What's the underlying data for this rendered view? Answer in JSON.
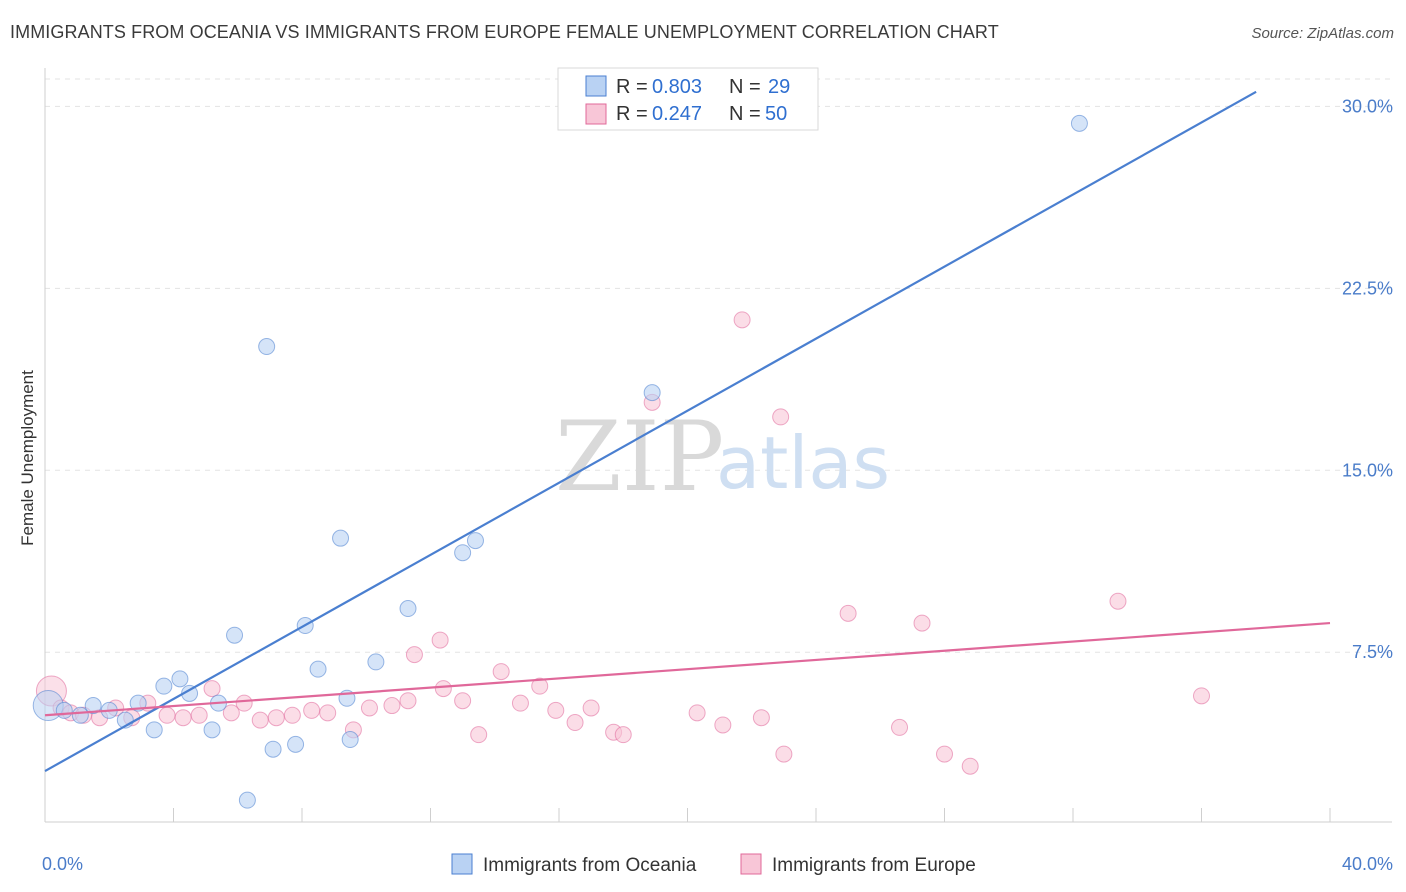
{
  "header": {
    "title": "IMMIGRANTS FROM OCEANIA VS IMMIGRANTS FROM EUROPE FEMALE UNEMPLOYMENT CORRELATION CHART",
    "source": "Source: ZipAtlas.com"
  },
  "watermark": {
    "zip": "ZIP",
    "atlas": "atlas"
  },
  "legend": {
    "r_label": "R =",
    "n_label": "N =",
    "rows": [
      {
        "r": "0.803",
        "n": "29"
      },
      {
        "r": "0.247",
        "n": "50"
      }
    ]
  },
  "chart_data": {
    "type": "scatter",
    "title": "IMMIGRANTS FROM OCEANIA VS IMMIGRANTS FROM EUROPE FEMALE UNEMPLOYMENT CORRELATION CHART",
    "xlabel": "",
    "ylabel": "Female Unemployment",
    "xlim": [
      0,
      40
    ],
    "ylim": [
      0.5,
      31.5
    ],
    "x_tick_labels": [
      "0.0%",
      "40.0%"
    ],
    "y_ticks": [
      7.5,
      15.0,
      22.5,
      30.0
    ],
    "y_tick_labels": [
      "7.5%",
      "15.0%",
      "22.5%",
      "30.0%"
    ],
    "grid": true,
    "legend_position": "top-center",
    "colors": {
      "oceania": "#4a7fd0",
      "europe": "#e0689a",
      "oceania_fill": "#b9d2f3",
      "europe_fill": "#f8c6d7"
    },
    "series": [
      {
        "name": "Immigrants from Oceania",
        "r": 0.803,
        "n": 29,
        "trend": {
          "x": [
            0,
            37.7
          ],
          "y": [
            2.6,
            30.6
          ]
        },
        "points": [
          {
            "x": 0.1,
            "y": 5.3,
            "big": true
          },
          {
            "x": 0.6,
            "y": 5.1
          },
          {
            "x": 1.1,
            "y": 4.9
          },
          {
            "x": 1.5,
            "y": 5.3
          },
          {
            "x": 2.0,
            "y": 5.1
          },
          {
            "x": 2.5,
            "y": 4.7
          },
          {
            "x": 2.9,
            "y": 5.4
          },
          {
            "x": 3.4,
            "y": 4.3
          },
          {
            "x": 3.7,
            "y": 6.1
          },
          {
            "x": 4.2,
            "y": 6.4
          },
          {
            "x": 4.5,
            "y": 5.8
          },
          {
            "x": 5.2,
            "y": 4.3
          },
          {
            "x": 5.4,
            "y": 5.4
          },
          {
            "x": 5.9,
            "y": 8.2
          },
          {
            "x": 6.3,
            "y": 1.4
          },
          {
            "x": 6.9,
            "y": 20.1
          },
          {
            "x": 7.1,
            "y": 3.5
          },
          {
            "x": 7.8,
            "y": 3.7
          },
          {
            "x": 8.1,
            "y": 8.6
          },
          {
            "x": 8.5,
            "y": 6.8
          },
          {
            "x": 9.2,
            "y": 12.2
          },
          {
            "x": 9.4,
            "y": 5.6
          },
          {
            "x": 9.5,
            "y": 3.9
          },
          {
            "x": 10.3,
            "y": 7.1
          },
          {
            "x": 11.3,
            "y": 9.3
          },
          {
            "x": 13.0,
            "y": 11.6
          },
          {
            "x": 13.4,
            "y": 12.1
          },
          {
            "x": 18.9,
            "y": 18.2
          },
          {
            "x": 32.2,
            "y": 29.3
          }
        ]
      },
      {
        "name": "Immigrants from Europe",
        "r": 0.247,
        "n": 50,
        "trend": {
          "x": [
            0,
            40
          ],
          "y": [
            4.9,
            8.7
          ]
        },
        "points": [
          {
            "x": 0.2,
            "y": 5.9,
            "big": true
          },
          {
            "x": 0.5,
            "y": 5.2
          },
          {
            "x": 0.8,
            "y": 5.0
          },
          {
            "x": 1.2,
            "y": 4.9
          },
          {
            "x": 1.7,
            "y": 4.8
          },
          {
            "x": 2.2,
            "y": 5.2
          },
          {
            "x": 2.7,
            "y": 4.8
          },
          {
            "x": 3.2,
            "y": 5.4
          },
          {
            "x": 3.8,
            "y": 4.9
          },
          {
            "x": 4.3,
            "y": 4.8
          },
          {
            "x": 4.8,
            "y": 4.9
          },
          {
            "x": 5.2,
            "y": 6.0
          },
          {
            "x": 5.8,
            "y": 5.0
          },
          {
            "x": 6.2,
            "y": 5.4
          },
          {
            "x": 6.7,
            "y": 4.7
          },
          {
            "x": 7.2,
            "y": 4.8
          },
          {
            "x": 7.7,
            "y": 4.9
          },
          {
            "x": 8.3,
            "y": 5.1
          },
          {
            "x": 8.8,
            "y": 5.0
          },
          {
            "x": 9.6,
            "y": 4.3
          },
          {
            "x": 10.1,
            "y": 5.2
          },
          {
            "x": 10.8,
            "y": 5.3
          },
          {
            "x": 11.3,
            "y": 5.5
          },
          {
            "x": 11.5,
            "y": 7.4
          },
          {
            "x": 12.3,
            "y": 8.0
          },
          {
            "x": 12.4,
            "y": 6.0
          },
          {
            "x": 13.0,
            "y": 5.5
          },
          {
            "x": 13.5,
            "y": 4.1
          },
          {
            "x": 14.2,
            "y": 6.7
          },
          {
            "x": 14.8,
            "y": 5.4
          },
          {
            "x": 15.4,
            "y": 6.1
          },
          {
            "x": 15.9,
            "y": 5.1
          },
          {
            "x": 16.5,
            "y": 4.6
          },
          {
            "x": 17.0,
            "y": 5.2
          },
          {
            "x": 17.7,
            "y": 4.2
          },
          {
            "x": 18.0,
            "y": 4.1
          },
          {
            "x": 18.9,
            "y": 17.8
          },
          {
            "x": 20.3,
            "y": 5.0
          },
          {
            "x": 21.1,
            "y": 4.5
          },
          {
            "x": 21.7,
            "y": 21.2
          },
          {
            "x": 22.3,
            "y": 4.8
          },
          {
            "x": 22.9,
            "y": 17.2
          },
          {
            "x": 23.0,
            "y": 3.3
          },
          {
            "x": 25.0,
            "y": 9.1
          },
          {
            "x": 26.6,
            "y": 4.4
          },
          {
            "x": 27.3,
            "y": 8.7
          },
          {
            "x": 28.0,
            "y": 3.3
          },
          {
            "x": 28.8,
            "y": 2.8
          },
          {
            "x": 33.4,
            "y": 9.6
          },
          {
            "x": 36.0,
            "y": 5.7
          }
        ]
      }
    ]
  }
}
